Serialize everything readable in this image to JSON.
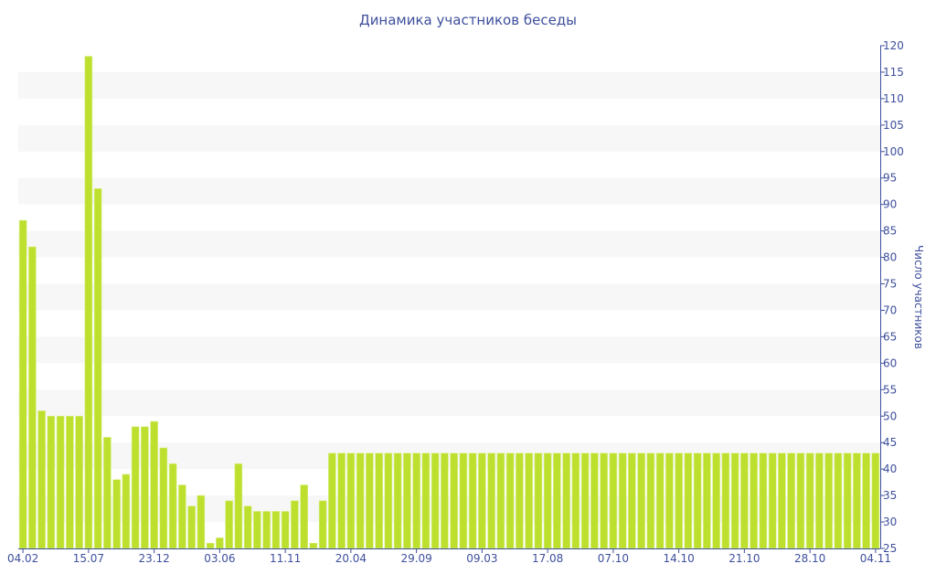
{
  "chart_data": {
    "type": "bar",
    "title": "Динамика участников беседы",
    "ylabel": "Число участников",
    "xlabel": "",
    "ylim": [
      25,
      120
    ],
    "yticks": [
      25,
      30,
      35,
      40,
      45,
      50,
      55,
      60,
      65,
      70,
      75,
      80,
      85,
      90,
      95,
      100,
      105,
      110,
      115,
      120
    ],
    "y_axis_side": "right",
    "grid": "alternating horizontal bands",
    "bar_color": "#bde02f",
    "axis_color": "#3e4f9c",
    "xtick_labels": [
      "04.02",
      "15.07",
      "23.12",
      "03.06",
      "11.11",
      "20.04",
      "29.09",
      "09.03",
      "17.08",
      "07.10",
      "14.10",
      "21.10",
      "28.10",
      "04.11"
    ],
    "xtick_every": 7,
    "values": [
      87,
      82,
      51,
      50,
      50,
      50,
      50,
      118,
      93,
      46,
      38,
      39,
      48,
      48,
      49,
      44,
      41,
      37,
      33,
      35,
      26,
      27,
      34,
      41,
      33,
      32,
      32,
      32,
      32,
      34,
      37,
      26,
      34,
      43,
      43,
      43,
      43,
      43,
      43,
      43,
      43,
      43,
      43,
      43,
      43,
      43,
      43,
      43,
      43,
      43,
      43,
      43,
      43,
      43,
      43,
      43,
      43,
      43,
      43,
      43,
      43,
      43,
      43,
      43,
      43,
      43,
      43,
      43,
      43,
      43,
      43,
      43,
      43,
      43,
      43,
      43,
      43,
      43,
      43,
      43,
      43,
      43,
      43,
      43,
      43,
      43,
      43,
      43,
      43,
      43,
      43,
      43
    ]
  }
}
